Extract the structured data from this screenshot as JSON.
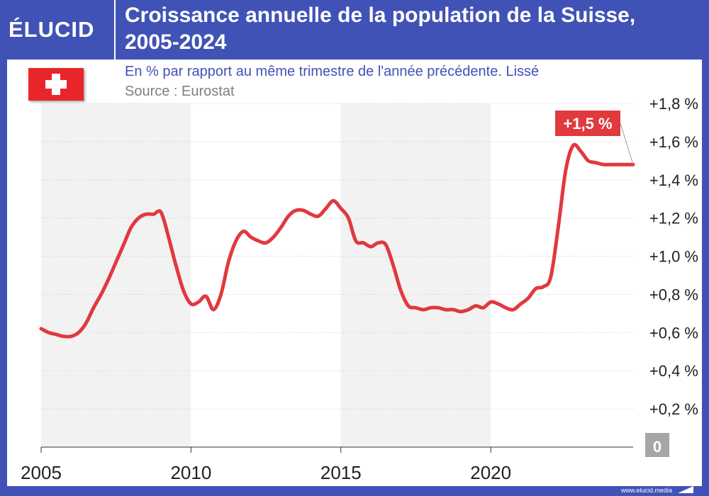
{
  "header": {
    "logo": "ÉLUCID",
    "title_line1": "Croissance annuelle de la population de la Suisse,",
    "title_line2": "2005-2024"
  },
  "subtitle": "En % par rapport au même trimestre de l'année précédente. Lissé",
  "source": "Source : Eurostat",
  "footer": {
    "url": "www.elucid.media"
  },
  "colors": {
    "brand": "#4152b7",
    "line": "#e0393e",
    "band": "#f2f2f2",
    "flag": "#e8262a",
    "zero_box": "#a6a6a6"
  },
  "chart_data": {
    "type": "line",
    "title": "Croissance annuelle de la population de la Suisse, 2005-2024",
    "subtitle": "En % par rapport au même trimestre de l'année précédente. Lissé",
    "source": "Source : Eurostat",
    "x_range": [
      2005,
      2024.75
    ],
    "ylim": [
      0,
      1.8
    ],
    "x_ticks": [
      {
        "value": 2005,
        "label": "2005"
      },
      {
        "value": 2010,
        "label": "2010"
      },
      {
        "value": 2015,
        "label": "2015"
      },
      {
        "value": 2020,
        "label": "2020"
      }
    ],
    "y_ticks": [
      {
        "value": 0.2,
        "label": "+0,2 %"
      },
      {
        "value": 0.4,
        "label": "+0,4 %"
      },
      {
        "value": 0.6,
        "label": "+0,6 %"
      },
      {
        "value": 0.8,
        "label": "+0,8 %"
      },
      {
        "value": 1.0,
        "label": "+1,0 %"
      },
      {
        "value": 1.2,
        "label": "+1,2 %"
      },
      {
        "value": 1.4,
        "label": "+1,4 %"
      },
      {
        "value": 1.6,
        "label": "+1,6 %"
      },
      {
        "value": 1.8,
        "label": "+1,8 %"
      }
    ],
    "zero_label": "0",
    "shaded_bands": [
      [
        2005,
        2010
      ],
      [
        2015,
        2020
      ]
    ],
    "grid": true,
    "series": [
      {
        "name": "Croissance annuelle de la population (%)",
        "x": [
          2005.0,
          2005.25,
          2005.5,
          2005.75,
          2006.0,
          2006.25,
          2006.5,
          2006.75,
          2007.0,
          2007.25,
          2007.5,
          2007.75,
          2008.0,
          2008.25,
          2008.5,
          2008.75,
          2009.0,
          2009.25,
          2009.5,
          2009.75,
          2010.0,
          2010.25,
          2010.5,
          2010.75,
          2011.0,
          2011.25,
          2011.5,
          2011.75,
          2012.0,
          2012.25,
          2012.5,
          2012.75,
          2013.0,
          2013.25,
          2013.5,
          2013.75,
          2014.0,
          2014.25,
          2014.5,
          2014.75,
          2015.0,
          2015.25,
          2015.5,
          2015.75,
          2016.0,
          2016.25,
          2016.5,
          2016.75,
          2017.0,
          2017.25,
          2017.5,
          2017.75,
          2018.0,
          2018.25,
          2018.5,
          2018.75,
          2019.0,
          2019.25,
          2019.5,
          2019.75,
          2020.0,
          2020.25,
          2020.5,
          2020.75,
          2021.0,
          2021.25,
          2021.5,
          2021.75,
          2022.0,
          2022.25,
          2022.5,
          2022.75,
          2023.0,
          2023.25,
          2023.5,
          2023.75,
          2024.0,
          2024.25,
          2024.5,
          2024.75
        ],
        "values": [
          0.62,
          0.6,
          0.59,
          0.58,
          0.58,
          0.6,
          0.65,
          0.73,
          0.8,
          0.88,
          0.97,
          1.06,
          1.15,
          1.2,
          1.22,
          1.22,
          1.23,
          1.1,
          0.95,
          0.82,
          0.75,
          0.76,
          0.79,
          0.72,
          0.8,
          0.97,
          1.08,
          1.13,
          1.1,
          1.08,
          1.07,
          1.1,
          1.15,
          1.21,
          1.24,
          1.24,
          1.22,
          1.21,
          1.25,
          1.29,
          1.25,
          1.2,
          1.08,
          1.07,
          1.05,
          1.07,
          1.06,
          0.95,
          0.82,
          0.74,
          0.73,
          0.72,
          0.73,
          0.73,
          0.72,
          0.72,
          0.71,
          0.72,
          0.74,
          0.73,
          0.76,
          0.75,
          0.73,
          0.72,
          0.75,
          0.78,
          0.83,
          0.84,
          0.89,
          1.15,
          1.45,
          1.58,
          1.55,
          1.5,
          1.49,
          1.48,
          1.48,
          1.48,
          1.48,
          1.48
        ]
      }
    ],
    "annotations": [
      {
        "text": "+1,5 %",
        "x": 2024.75,
        "y": 1.48
      }
    ]
  }
}
